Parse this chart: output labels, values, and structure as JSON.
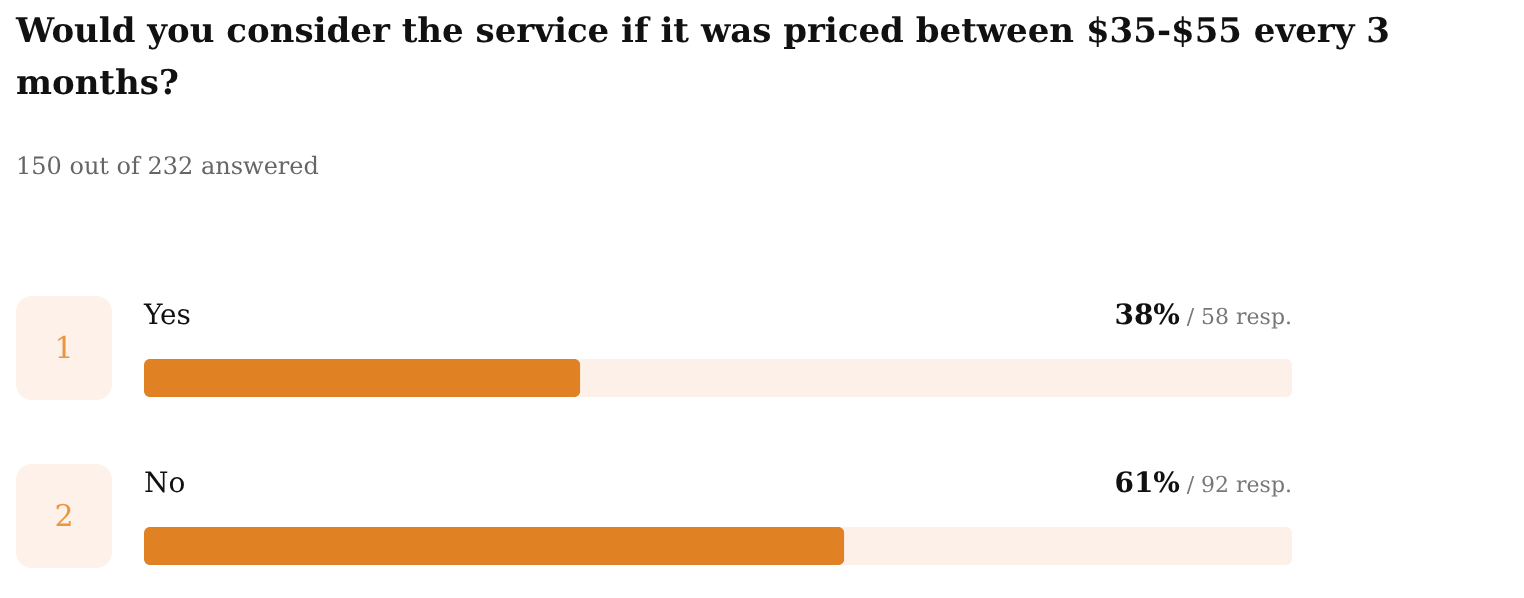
{
  "chart_data": {
    "type": "bar",
    "orientation": "horizontal",
    "title": [
      "Would you consider the service if it was priced between $35-$55 every 3",
      "months?"
    ],
    "subtitle": "150 out of 232 answered",
    "categories": [
      "Yes",
      "No"
    ],
    "values": [
      38,
      61
    ],
    "color": "#e08224",
    "value_labels": [
      "38%",
      "61%"
    ],
    "xlim": [
      0,
      100
    ],
    "tick_labels": false,
    "grid": false,
    "annotations": [
      "1",
      "/ 58 resp.",
      "2",
      "/ 92 resp."
    ]
  }
}
